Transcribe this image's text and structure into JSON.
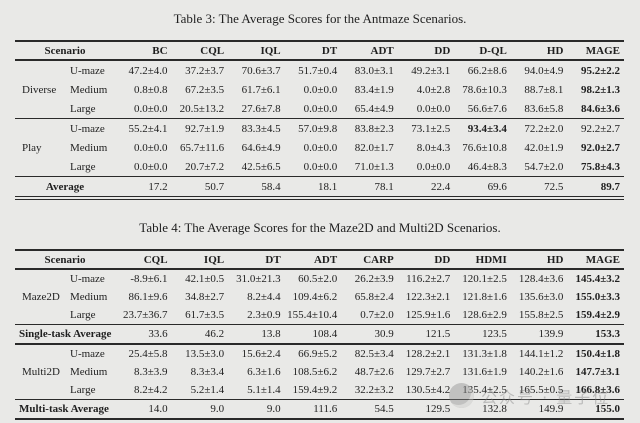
{
  "colors": {
    "background": "#e9e9e7",
    "text": "#1f1f1f",
    "rule": "#2a2a2a",
    "watermark": "#8b8b8b"
  },
  "watermark": {
    "text": "公众号 · 量子位"
  },
  "tables": [
    {
      "id": "table3",
      "title": "Table 3: The Average Scores for the Antmaze Scenarios.",
      "scenario_header": "Scenario",
      "columns": [
        "BC",
        "CQL",
        "IQL",
        "DT",
        "ADT",
        "DD",
        "D-QL",
        "HD",
        "MAGE"
      ],
      "blocks": [
        {
          "group": "Diverse",
          "rows": [
            {
              "label": "U-maze",
              "values": [
                "47.2±4.0",
                "37.2±3.7",
                "70.6±3.7",
                "51.7±0.4",
                "83.0±3.1",
                "49.2±3.1",
                "66.2±8.6",
                "94.0±4.9",
                "95.2±2.2"
              ],
              "bold": [
                8
              ]
            },
            {
              "label": "Medium",
              "values": [
                "0.8±0.8",
                "67.2±3.5",
                "61.7±6.1",
                "0.0±0.0",
                "83.4±1.9",
                "4.0±2.8",
                "78.6±10.3",
                "88.7±8.1",
                "98.2±1.3"
              ],
              "bold": [
                8
              ]
            },
            {
              "label": "Large",
              "values": [
                "0.0±0.0",
                "20.5±13.2",
                "27.6±7.8",
                "0.0±0.0",
                "65.4±4.9",
                "0.0±0.0",
                "56.6±7.6",
                "83.6±5.8",
                "84.6±3.6"
              ],
              "bold": [
                8
              ]
            }
          ]
        },
        {
          "group": "Play",
          "rows": [
            {
              "label": "U-maze",
              "values": [
                "55.2±4.1",
                "92.7±1.9",
                "83.3±4.5",
                "57.0±9.8",
                "83.8±2.3",
                "73.1±2.5",
                "93.4±3.4",
                "72.2±2.0",
                "92.2±2.7"
              ],
              "bold": [
                6
              ]
            },
            {
              "label": "Medium",
              "values": [
                "0.0±0.0",
                "65.7±11.6",
                "64.6±4.9",
                "0.0±0.0",
                "82.0±1.7",
                "8.0±4.3",
                "76.6±10.8",
                "42.0±1.9",
                "92.0±2.7"
              ],
              "bold": [
                8
              ]
            },
            {
              "label": "Large",
              "values": [
                "0.0±0.0",
                "20.7±7.2",
                "42.5±6.5",
                "0.0±0.0",
                "71.0±1.3",
                "0.0±0.0",
                "46.4±8.3",
                "54.7±2.0",
                "75.8±4.3"
              ],
              "bold": [
                8
              ]
            }
          ]
        },
        {
          "footer": "Average",
          "values": [
            "17.2",
            "50.7",
            "58.4",
            "18.1",
            "78.1",
            "22.4",
            "69.6",
            "72.5",
            "89.7"
          ],
          "bold": [
            8
          ]
        }
      ]
    },
    {
      "id": "table4",
      "title": "Table 4: The Average Scores for the Maze2D and Multi2D Scenarios.",
      "scenario_header": "Scenario",
      "columns": [
        "CQL",
        "IQL",
        "DT",
        "ADT",
        "CARP",
        "DD",
        "HDMI",
        "HD",
        "MAGE"
      ],
      "blocks": [
        {
          "group": "Maze2D",
          "rows": [
            {
              "label": "U-maze",
              "values": [
                "-8.9±6.1",
                "42.1±0.5",
                "31.0±21.3",
                "60.5±2.0",
                "26.2±3.9",
                "116.2±2.7",
                "120.1±2.5",
                "128.4±3.6",
                "145.4±3.2"
              ],
              "bold": [
                8
              ]
            },
            {
              "label": "Medium",
              "values": [
                "86.1±9.6",
                "34.8±2.7",
                "8.2±4.4",
                "109.4±6.2",
                "65.8±2.4",
                "122.3±2.1",
                "121.8±1.6",
                "135.6±3.0",
                "155.0±3.3"
              ],
              "bold": [
                8
              ]
            },
            {
              "label": "Large",
              "values": [
                "23.7±36.7",
                "61.7±3.5",
                "2.3±0.9",
                "155.4±10.4",
                "0.7±2.0",
                "125.9±1.6",
                "128.6±2.9",
                "155.8±2.5",
                "159.4±2.9"
              ],
              "bold": [
                8
              ]
            }
          ]
        },
        {
          "footer": "Single-task Average",
          "values": [
            "33.6",
            "46.2",
            "13.8",
            "108.4",
            "30.9",
            "121.5",
            "123.5",
            "139.9",
            "153.3"
          ],
          "bold": [
            8
          ]
        },
        {
          "group": "Multi2D",
          "rows": [
            {
              "label": "U-maze",
              "values": [
                "25.4±5.8",
                "13.5±3.0",
                "15.6±2.4",
                "66.9±5.2",
                "82.5±3.4",
                "128.2±2.1",
                "131.3±1.8",
                "144.1±1.2",
                "150.4±1.8"
              ],
              "bold": [
                8
              ]
            },
            {
              "label": "Medium",
              "values": [
                "8.3±3.9",
                "8.3±3.4",
                "6.3±1.6",
                "108.5±6.2",
                "48.7±2.6",
                "129.7±2.7",
                "131.6±1.9",
                "140.2±1.6",
                "147.7±3.1"
              ],
              "bold": [
                8
              ]
            },
            {
              "label": "Large",
              "values": [
                "8.2±4.2",
                "5.2±1.4",
                "5.1±1.4",
                "159.4±9.2",
                "32.2±3.2",
                "130.5±4.2",
                "135.4±2.5",
                "165.5±0.5",
                "166.8±3.6"
              ],
              "bold": [
                8
              ]
            }
          ]
        },
        {
          "footer": "Multi-task Average",
          "values": [
            "14.0",
            "9.0",
            "9.0",
            "111.6",
            "54.5",
            "129.5",
            "132.8",
            "149.9",
            "155.0"
          ],
          "bold": [
            8
          ]
        }
      ]
    }
  ]
}
